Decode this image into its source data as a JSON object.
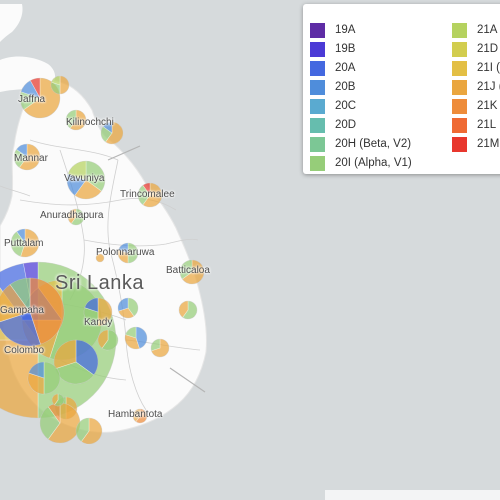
{
  "map": {
    "country_label": "Sri Lanka",
    "colors": {
      "water": "#d6dadc",
      "land": "#fbfbfb",
      "border": "#c7c7c7"
    },
    "places": [
      {
        "name": "Jaffna",
        "key": "jaffna"
      },
      {
        "name": "Kilinochchi",
        "key": "kilinochchi"
      },
      {
        "name": "Mannar",
        "key": "mannar"
      },
      {
        "name": "Vavuniya",
        "key": "vavuniya"
      },
      {
        "name": "Trincomalee",
        "key": "trincomalee"
      },
      {
        "name": "Anuradhapura",
        "key": "anuradhapura"
      },
      {
        "name": "Puttalam",
        "key": "puttalam"
      },
      {
        "name": "Polonnaruwa",
        "key": "polonnaruwa"
      },
      {
        "name": "Batticaloa",
        "key": "batticaloa"
      },
      {
        "name": "Gampaha",
        "key": "gampaha"
      },
      {
        "name": "Kandy",
        "key": "kandy"
      },
      {
        "name": "Colombo",
        "key": "colombo"
      },
      {
        "name": "Hambantota",
        "key": "hambantota"
      }
    ]
  },
  "legend": {
    "entries": [
      {
        "label": "19A",
        "color": "#5e2ca5"
      },
      {
        "label": "19B",
        "color": "#4b3ad6"
      },
      {
        "label": "20A",
        "color": "#4468e0"
      },
      {
        "label": "20B",
        "color": "#4f8ddb"
      },
      {
        "label": "20C",
        "color": "#5aaad0"
      },
      {
        "label": "20D",
        "color": "#66bdae"
      },
      {
        "label": "20H (Beta, V2)",
        "color": "#7cc795"
      },
      {
        "label": "20I (Alpha, V1)",
        "color": "#96cd79"
      },
      {
        "label": "21A",
        "color": "#b5d25f"
      },
      {
        "label": "21D",
        "color": "#d2cd4e"
      },
      {
        "label": "21I (",
        "color": "#e3bf45"
      },
      {
        "label": "21J (",
        "color": "#eaa63f"
      },
      {
        "label": "21K",
        "color": "#ee8c3a"
      },
      {
        "label": "21L",
        "color": "#ef6a34"
      },
      {
        "label": "21M",
        "color": "#e8372d"
      }
    ]
  },
  "pie_markers": [
    {
      "place": "colombo",
      "slices": [
        [
          "20I (Alpha, V1)",
          0.55
        ],
        [
          "21J (",
          0.25
        ],
        [
          "21I (",
          0.12
        ],
        [
          "20A",
          0.05
        ],
        [
          "19B",
          0.03
        ]
      ]
    },
    {
      "place": "gampaha",
      "slices": [
        [
          "21K",
          0.45
        ],
        [
          "20A",
          0.25
        ],
        [
          "21J (",
          0.2
        ],
        [
          "20I (Alpha, V1)",
          0.1
        ]
      ]
    },
    {
      "place": "kalutara",
      "slices": [
        [
          "21I (",
          0.4
        ],
        [
          "21J (",
          0.35
        ],
        [
          "20I (Alpha, V1)",
          0.25
        ]
      ]
    },
    {
      "place": "jaffna",
      "slices": [
        [
          "21J (",
          0.7
        ],
        [
          "20I (Alpha, V1)",
          0.15
        ],
        [
          "20B",
          0.1
        ],
        [
          "21M",
          0.05
        ]
      ]
    },
    {
      "place": "vavuniya",
      "slices": [
        [
          "20I (Alpha, V1)",
          0.35
        ],
        [
          "21J (",
          0.25
        ],
        [
          "20B",
          0.2
        ],
        [
          "21A",
          0.2
        ]
      ]
    },
    {
      "place": "trincomalee",
      "slices": [
        [
          "21J (",
          0.6
        ],
        [
          "20I (Alpha, V1)",
          0.3
        ],
        [
          "21M",
          0.1
        ]
      ]
    },
    {
      "place": "galle",
      "slices": [
        [
          "21J (",
          0.6
        ],
        [
          "20I (Alpha, V1)",
          0.3
        ],
        [
          "21K",
          0.1
        ]
      ]
    }
  ]
}
